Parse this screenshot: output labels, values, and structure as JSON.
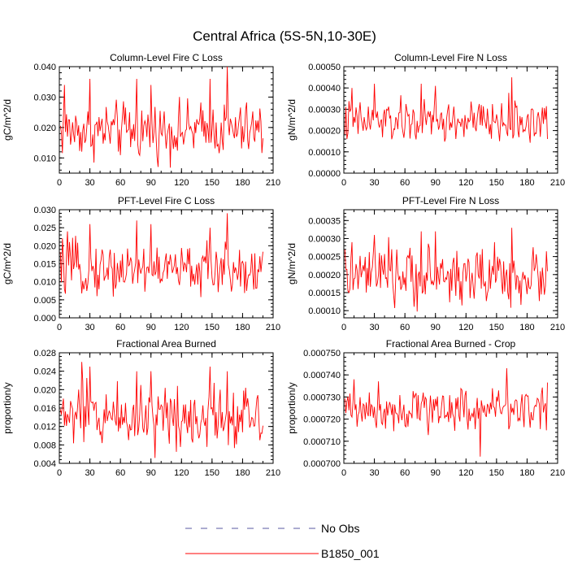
{
  "figure": {
    "title": "Central Africa (5S-5N,10-30E)",
    "legend": [
      {
        "label": "No Obs",
        "color": "#5a5aa0",
        "style": "dashed"
      },
      {
        "label": "B1850_001",
        "color": "#ff0000",
        "style": "solid"
      }
    ]
  },
  "series_color": "#ff0000",
  "chart_data": [
    {
      "type": "line",
      "title": "Column-Level Fire C Loss",
      "xlabel": "",
      "ylabel": "gC/m^2/d",
      "xlim": [
        0,
        210
      ],
      "ylim": [
        0.005,
        0.04
      ],
      "xticks": [
        0,
        30,
        60,
        90,
        120,
        150,
        180,
        210
      ],
      "xtick_labels": [
        "0",
        "30",
        "60",
        "90",
        "120",
        "150",
        "180",
        "210"
      ],
      "yticks": [
        0.01,
        0.02,
        0.03,
        0.04
      ],
      "ytick_labels": [
        "0.010",
        "0.020",
        "0.030",
        "0.040"
      ],
      "series": [
        {
          "name": "B1850_001",
          "x_start": 1,
          "n": 200,
          "mean": 0.019,
          "amplitude": 0.0045,
          "min": 0.006,
          "max": 0.04,
          "spikes": [
            [
              5,
              0.034
            ],
            [
              30,
              0.036
            ],
            [
              76,
              0.036
            ],
            [
              90,
              0.034
            ],
            [
              148,
              0.036
            ],
            [
              165,
              0.04
            ]
          ]
        }
      ]
    },
    {
      "type": "line",
      "title": "Column-Level Fire N Loss",
      "xlabel": "",
      "ylabel": "gN/m^2/d",
      "xlim": [
        0,
        210
      ],
      "ylim": [
        0.0,
        0.0005
      ],
      "xticks": [
        0,
        30,
        60,
        90,
        120,
        150,
        180,
        210
      ],
      "xtick_labels": [
        "0",
        "30",
        "60",
        "90",
        "120",
        "150",
        "180",
        "210"
      ],
      "yticks": [
        0.0,
        0.0001,
        0.0002,
        0.0003,
        0.0004,
        0.0005
      ],
      "ytick_labels": [
        "0.00000",
        "0.00010",
        "0.00020",
        "0.00030",
        "0.00040",
        "0.00050"
      ],
      "series": [
        {
          "name": "B1850_001",
          "x_start": 1,
          "n": 200,
          "mean": 0.00024,
          "amplitude": 5e-05,
          "min": 9e-05,
          "max": 0.00046,
          "spikes": [
            [
              8,
              0.0004
            ],
            [
              30,
              0.00042
            ],
            [
              76,
              0.00042
            ],
            [
              90,
              0.00041
            ],
            [
              165,
              0.00045
            ]
          ]
        }
      ]
    },
    {
      "type": "line",
      "title": "PFT-Level Fire C Loss",
      "xlabel": "",
      "ylabel": "gC/m^2/d",
      "xlim": [
        0,
        210
      ],
      "ylim": [
        0.0,
        0.03
      ],
      "xticks": [
        0,
        30,
        60,
        90,
        120,
        150,
        180,
        210
      ],
      "xtick_labels": [
        "0",
        "30",
        "60",
        "90",
        "120",
        "150",
        "180",
        "210"
      ],
      "yticks": [
        0.0,
        0.005,
        0.01,
        0.015,
        0.02,
        0.025,
        0.03
      ],
      "ytick_labels": [
        "0.000",
        "0.005",
        "0.010",
        "0.015",
        "0.020",
        "0.025",
        "0.030"
      ],
      "series": [
        {
          "name": "B1850_001",
          "x_start": 1,
          "n": 200,
          "mean": 0.0135,
          "amplitude": 0.0035,
          "min": 0.005,
          "max": 0.029,
          "spikes": [
            [
              8,
              0.024
            ],
            [
              30,
              0.026
            ],
            [
              76,
              0.027
            ],
            [
              90,
              0.026
            ],
            [
              148,
              0.025
            ],
            [
              165,
              0.029
            ]
          ]
        }
      ]
    },
    {
      "type": "line",
      "title": "PFT-Level Fire N Loss",
      "xlabel": "",
      "ylabel": "gN/m^2/d",
      "xlim": [
        0,
        210
      ],
      "ylim": [
        8e-05,
        0.00038
      ],
      "xticks": [
        0,
        30,
        60,
        90,
        120,
        150,
        180,
        210
      ],
      "xtick_labels": [
        "0",
        "30",
        "60",
        "90",
        "120",
        "150",
        "180",
        "210"
      ],
      "yticks": [
        0.0001,
        0.00015,
        0.0002,
        0.00025,
        0.0003,
        0.00035
      ],
      "ytick_labels": [
        "0.00010",
        "0.00015",
        "0.00020",
        "0.00025",
        "0.00030",
        "0.00035"
      ],
      "series": [
        {
          "name": "B1850_001",
          "x_start": 1,
          "n": 200,
          "mean": 0.000195,
          "amplitude": 4e-05,
          "min": 9e-05,
          "max": 0.00033,
          "spikes": [
            [
              8,
              0.00029
            ],
            [
              30,
              0.00031
            ],
            [
              76,
              0.00032
            ],
            [
              90,
              0.00032
            ],
            [
              148,
              0.00029
            ],
            [
              165,
              0.00033
            ]
          ]
        }
      ]
    },
    {
      "type": "line",
      "title": "Fractional Area Burned",
      "xlabel": "",
      "ylabel": "proportion/y",
      "xlim": [
        0,
        210
      ],
      "ylim": [
        0.004,
        0.028
      ],
      "xticks": [
        0,
        30,
        60,
        90,
        120,
        150,
        180,
        210
      ],
      "xtick_labels": [
        "0",
        "30",
        "60",
        "90",
        "120",
        "150",
        "180",
        "210"
      ],
      "yticks": [
        0.004,
        0.008,
        0.012,
        0.016,
        0.02,
        0.024,
        0.028
      ],
      "ytick_labels": [
        "0.004",
        "0.008",
        "0.012",
        "0.016",
        "0.020",
        "0.024",
        "0.028"
      ],
      "series": [
        {
          "name": "B1850_001",
          "x_start": 1,
          "n": 200,
          "mean": 0.0145,
          "amplitude": 0.0035,
          "min": 0.005,
          "max": 0.026,
          "spikes": [
            [
              22,
              0.026
            ],
            [
              30,
              0.025
            ],
            [
              76,
              0.024
            ],
            [
              90,
              0.024
            ],
            [
              148,
              0.025
            ],
            [
              165,
              0.024
            ]
          ]
        }
      ]
    },
    {
      "type": "line",
      "title": "Fractional Area Burned - Crop",
      "xlabel": "",
      "ylabel": "proportion/y",
      "xlim": [
        0,
        210
      ],
      "ylim": [
        0.0007,
        0.00075
      ],
      "xticks": [
        0,
        30,
        60,
        90,
        120,
        150,
        180,
        210
      ],
      "xtick_labels": [
        "0",
        "30",
        "60",
        "90",
        "120",
        "150",
        "180",
        "210"
      ],
      "yticks": [
        0.0007,
        0.00071,
        0.00072,
        0.00073,
        0.00074,
        0.00075
      ],
      "ytick_labels": [
        "0.000700",
        "0.000710",
        "0.000720",
        "0.000730",
        "0.000740",
        "0.000750"
      ],
      "series": [
        {
          "name": "B1850_001",
          "x_start": 1,
          "n": 200,
          "mean": 0.000725,
          "amplitude": 5e-06,
          "min": 0.000703,
          "max": 0.000743,
          "spikes": [
            [
              134,
              0.000703
            ],
            [
              160,
              0.000743
            ],
            [
              10,
              0.000738
            ]
          ]
        }
      ]
    }
  ]
}
